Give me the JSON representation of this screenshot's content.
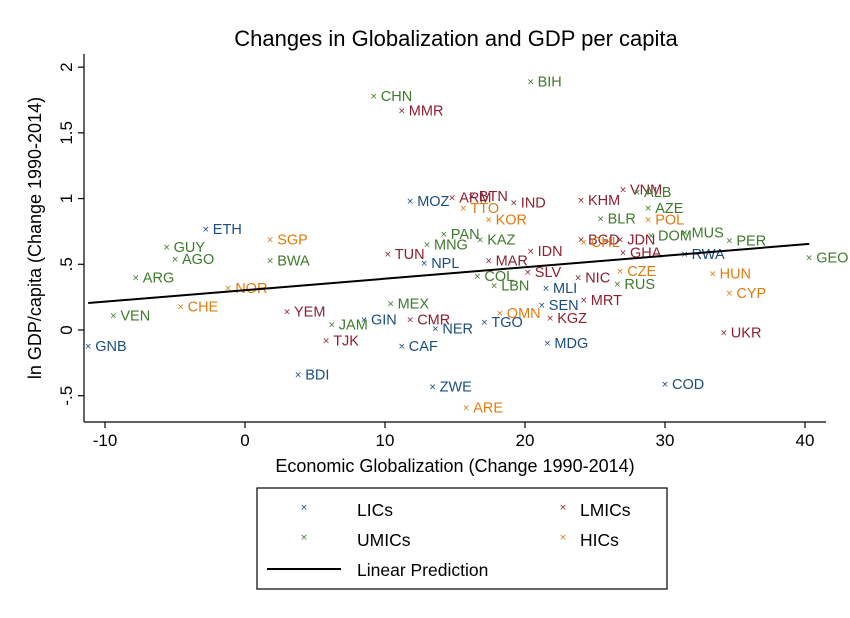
{
  "chart_data": {
    "type": "scatter",
    "title": "Changes in Globalization and GDP per capita",
    "xlabel": "Economic Globalization (Change 1990-2014)",
    "ylabel": "ln GDP/capita (Change 1990-2014)",
    "xlim": [
      -11.5,
      41.5
    ],
    "ylim": [
      -0.7,
      2.1
    ],
    "xticks": [
      -10,
      0,
      10,
      20,
      30,
      40
    ],
    "xtick_labels": [
      "-10",
      "0",
      "10",
      "20",
      "30",
      "40"
    ],
    "yticks": [
      -0.5,
      0,
      0.5,
      1,
      1.5,
      2
    ],
    "ytick_labels": [
      "-.5",
      "0",
      ".5",
      "1",
      "1.5",
      "2"
    ],
    "grid": false,
    "legend_position": "bottom",
    "marker": "×",
    "series": [
      {
        "name": "LICs",
        "color": "#1a4d80",
        "points": [
          {
            "label": "GNB",
            "x": -11.2,
            "y": -0.12
          },
          {
            "label": "ETH",
            "x": -2.8,
            "y": 0.77
          },
          {
            "label": "BDI",
            "x": 3.8,
            "y": -0.34
          },
          {
            "label": "MOZ",
            "x": 11.8,
            "y": 0.98
          },
          {
            "label": "ZWE",
            "x": 13.4,
            "y": -0.43
          },
          {
            "label": "NER",
            "x": 13.6,
            "y": 0.01
          },
          {
            "label": "TGO",
            "x": 17.1,
            "y": 0.06
          },
          {
            "label": "CAF",
            "x": 11.2,
            "y": -0.12
          },
          {
            "label": "GIN",
            "x": 8.5,
            "y": 0.08
          },
          {
            "label": "NPL",
            "x": 12.8,
            "y": 0.51
          },
          {
            "label": "MLI",
            "x": 21.5,
            "y": 0.32
          },
          {
            "label": "SEN",
            "x": 21.2,
            "y": 0.19
          },
          {
            "label": "MDG",
            "x": 21.6,
            "y": -0.1
          },
          {
            "label": "RWA",
            "x": 31.4,
            "y": 0.58
          },
          {
            "label": "COD",
            "x": 30.0,
            "y": -0.41
          }
        ]
      },
      {
        "name": "LMICs",
        "color": "#8c2030",
        "points": [
          {
            "label": "MMR",
            "x": 11.2,
            "y": 1.67
          },
          {
            "label": "BTN",
            "x": 16.2,
            "y": 1.02
          },
          {
            "label": "ARM",
            "x": 14.8,
            "y": 1.01
          },
          {
            "label": "IND",
            "x": 19.2,
            "y": 0.97
          },
          {
            "label": "KHM",
            "x": 24.0,
            "y": 0.99
          },
          {
            "label": "VNM",
            "x": 27.0,
            "y": 1.07
          },
          {
            "label": "IDN",
            "x": 20.4,
            "y": 0.6
          },
          {
            "label": "BGD",
            "x": 24.0,
            "y": 0.69
          },
          {
            "label": "JDN",
            "x": 26.8,
            "y": 0.69
          },
          {
            "label": "GHA",
            "x": 27.0,
            "y": 0.59
          },
          {
            "label": "SLV",
            "x": 20.2,
            "y": 0.44
          },
          {
            "label": "NIC",
            "x": 23.8,
            "y": 0.4
          },
          {
            "label": "MAR",
            "x": 17.4,
            "y": 0.53
          },
          {
            "label": "MRT",
            "x": 24.2,
            "y": 0.23
          },
          {
            "label": "KGZ",
            "x": 21.8,
            "y": 0.09
          },
          {
            "label": "UKR",
            "x": 34.2,
            "y": -0.02
          },
          {
            "label": "TJK",
            "x": 5.8,
            "y": -0.08
          },
          {
            "label": "YEM",
            "x": 3.0,
            "y": 0.14
          },
          {
            "label": "CMR",
            "x": 11.8,
            "y": 0.08
          },
          {
            "label": "TUN",
            "x": 10.2,
            "y": 0.58
          }
        ]
      },
      {
        "name": "UMICs",
        "color": "#3d7a2a",
        "points": [
          {
            "label": "CHN",
            "x": 9.2,
            "y": 1.78
          },
          {
            "label": "BIH",
            "x": 20.4,
            "y": 1.89
          },
          {
            "label": "ALB",
            "x": 28.0,
            "y": 1.05
          },
          {
            "label": "AZE",
            "x": 28.8,
            "y": 0.93
          },
          {
            "label": "BLR",
            "x": 25.4,
            "y": 0.85
          },
          {
            "label": "PER",
            "x": 34.6,
            "y": 0.68
          },
          {
            "label": "MUS",
            "x": 31.4,
            "y": 0.74
          },
          {
            "label": "DOM",
            "x": 29.0,
            "y": 0.72
          },
          {
            "label": "GUY",
            "x": -5.6,
            "y": 0.63
          },
          {
            "label": "AGO",
            "x": -5.0,
            "y": 0.54
          },
          {
            "label": "ARG",
            "x": -7.8,
            "y": 0.4
          },
          {
            "label": "VEN",
            "x": -9.4,
            "y": 0.11
          },
          {
            "label": "BWA",
            "x": 1.8,
            "y": 0.53
          },
          {
            "label": "PAN",
            "x": 14.2,
            "y": 0.73
          },
          {
            "label": "KAZ",
            "x": 16.8,
            "y": 0.69
          },
          {
            "label": "MNG",
            "x": 13.0,
            "y": 0.65
          },
          {
            "label": "COL",
            "x": 16.6,
            "y": 0.41
          },
          {
            "label": "LBN",
            "x": 17.8,
            "y": 0.34
          },
          {
            "label": "MEX",
            "x": 10.4,
            "y": 0.2
          },
          {
            "label": "RUS",
            "x": 26.6,
            "y": 0.35
          },
          {
            "label": "GEO",
            "x": 40.3,
            "y": 0.55
          },
          {
            "label": "JAM",
            "x": 6.2,
            "y": 0.04
          }
        ]
      },
      {
        "name": "HICs",
        "color": "#e07b10",
        "points": [
          {
            "label": "KOR",
            "x": 17.4,
            "y": 0.84
          },
          {
            "label": "TTO",
            "x": 15.6,
            "y": 0.93
          },
          {
            "label": "POL",
            "x": 28.8,
            "y": 0.84
          },
          {
            "label": "SGP",
            "x": 1.8,
            "y": 0.69
          },
          {
            "label": "CHL",
            "x": 24.2,
            "y": 0.67
          },
          {
            "label": "CZE",
            "x": 26.8,
            "y": 0.45
          },
          {
            "label": "HUN",
            "x": 33.4,
            "y": 0.43
          },
          {
            "label": "CYP",
            "x": 34.6,
            "y": 0.28
          },
          {
            "label": "CHE",
            "x": -4.6,
            "y": 0.18
          },
          {
            "label": "NOR",
            "x": -1.2,
            "y": 0.32
          },
          {
            "label": "ARE",
            "x": 15.8,
            "y": -0.59
          },
          {
            "label": "OMN",
            "x": 18.2,
            "y": 0.13
          }
        ]
      }
    ],
    "line": {
      "name": "Linear Prediction",
      "color": "#000000",
      "x": [
        -11.2,
        40.3
      ],
      "y": [
        0.205,
        0.655
      ]
    }
  },
  "legend": {
    "items": [
      "LICs",
      "LMICs",
      "UMICs",
      "HICs"
    ],
    "line_label": "Linear Prediction"
  }
}
